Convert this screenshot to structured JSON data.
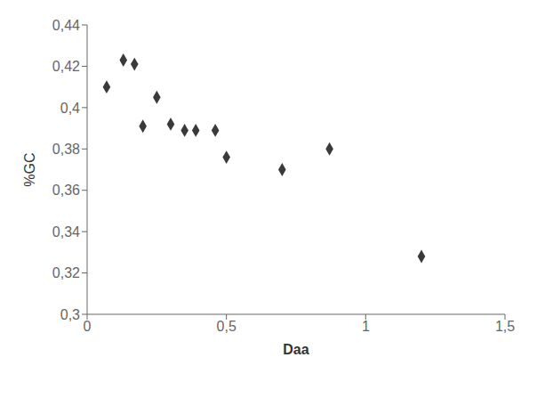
{
  "chart_data": {
    "type": "scatter",
    "x": [
      0.07,
      0.13,
      0.17,
      0.2,
      0.25,
      0.3,
      0.35,
      0.39,
      0.46,
      0.5,
      0.7,
      0.87,
      1.2
    ],
    "values": [
      0.41,
      0.423,
      0.421,
      0.391,
      0.405,
      0.392,
      0.389,
      0.389,
      0.389,
      0.376,
      0.37,
      0.38,
      0.328
    ],
    "xlabel": "Daa",
    "ylabel": "%GC",
    "xlim": [
      0,
      1.5
    ],
    "ylim": [
      0.3,
      0.44
    ],
    "xticks": [
      0,
      {
        "value": 0.5,
        "label": "0,5"
      },
      1,
      {
        "value": 1.5,
        "label": "1,5"
      }
    ],
    "yticks": [
      {
        "value": 0.3,
        "label": "0,3"
      },
      {
        "value": 0.32,
        "label": "0,32"
      },
      {
        "value": 0.34,
        "label": "0,34"
      },
      {
        "value": 0.36,
        "label": "0,36"
      },
      {
        "value": 0.38,
        "label": "0,38"
      },
      {
        "value": 0.4,
        "label": "0,4"
      },
      {
        "value": 0.42,
        "label": "0,42"
      },
      {
        "value": 0.44,
        "label": "0,44"
      }
    ],
    "color": "#3a3a3a",
    "marker": "diamond",
    "grid": false
  }
}
